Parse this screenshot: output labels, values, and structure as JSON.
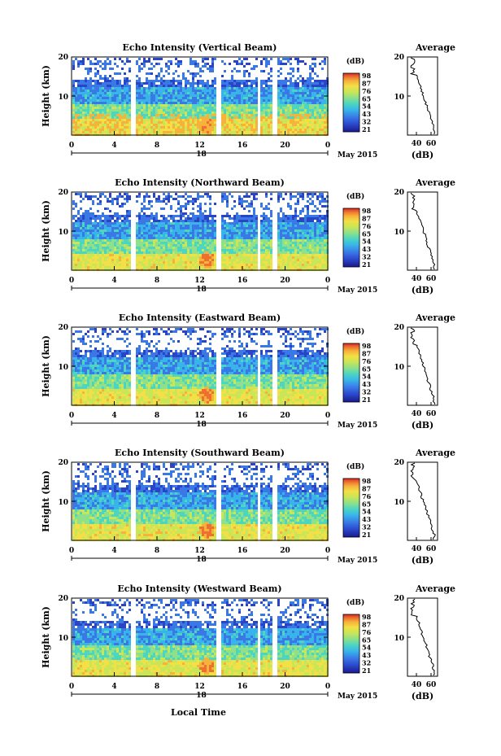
{
  "chart_data": [
    {
      "type": "heatmap",
      "title": "Echo Intensity (Vertical Beam)",
      "ylabel": "Height (km)",
      "xticks": [
        "0",
        "4",
        "8",
        "12",
        "16",
        "20",
        "0"
      ],
      "yticks": [
        "20",
        "10"
      ],
      "date_label": "18",
      "month_label": "May 2015",
      "colorbar": {
        "unit": "(dB)",
        "ticks": [
          "98",
          "87",
          "76",
          "65",
          "54",
          "43",
          "32",
          "21"
        ]
      },
      "profile": {
        "title": "Average",
        "xticks": [
          "40",
          "60"
        ],
        "xlabel": "(dB)",
        "yticks": [
          "20",
          "10"
        ]
      }
    },
    {
      "type": "heatmap",
      "title": "Echo Intensity (Northward Beam)",
      "ylabel": "Height (km)",
      "xticks": [
        "0",
        "4",
        "8",
        "12",
        "16",
        "20",
        "0"
      ],
      "yticks": [
        "20",
        "10"
      ],
      "date_label": "18",
      "month_label": "May 2015",
      "colorbar": {
        "unit": "(dB)",
        "ticks": [
          "98",
          "87",
          "76",
          "65",
          "54",
          "43",
          "32",
          "21"
        ]
      },
      "profile": {
        "title": "Average",
        "xticks": [
          "40",
          "60"
        ],
        "xlabel": "(dB)",
        "yticks": [
          "20",
          "10"
        ]
      }
    },
    {
      "type": "heatmap",
      "title": "Echo Intensity (Eastward Beam)",
      "ylabel": "Height (km)",
      "xticks": [
        "0",
        "4",
        "8",
        "12",
        "16",
        "20",
        "0"
      ],
      "yticks": [
        "20",
        "10"
      ],
      "date_label": "18",
      "month_label": "May 2015",
      "colorbar": {
        "unit": "(dB)",
        "ticks": [
          "98",
          "87",
          "76",
          "65",
          "54",
          "43",
          "32",
          "21"
        ]
      },
      "profile": {
        "title": "Average",
        "xticks": [
          "40",
          "60"
        ],
        "xlabel": "(dB)",
        "yticks": [
          "20",
          "10"
        ]
      }
    },
    {
      "type": "heatmap",
      "title": "Echo Intensity (Southward Beam)",
      "ylabel": "Height (km)",
      "xticks": [
        "0",
        "4",
        "8",
        "12",
        "16",
        "20",
        "0"
      ],
      "yticks": [
        "20",
        "10"
      ],
      "date_label": "18",
      "month_label": "May 2015",
      "colorbar": {
        "unit": "(dB)",
        "ticks": [
          "98",
          "87",
          "76",
          "65",
          "54",
          "43",
          "32",
          "21"
        ]
      },
      "profile": {
        "title": "Average",
        "xticks": [
          "40",
          "60"
        ],
        "xlabel": "(dB)",
        "yticks": [
          "20",
          "10"
        ]
      }
    },
    {
      "type": "heatmap",
      "title": "Echo Intensity (Westward Beam)",
      "ylabel": "Height (km)",
      "xticks": [
        "0",
        "4",
        "8",
        "12",
        "16",
        "20",
        "0"
      ],
      "yticks": [
        "20",
        "10"
      ],
      "date_label": "18",
      "month_label": "May 2015",
      "colorbar": {
        "unit": "(dB)",
        "ticks": [
          "98",
          "87",
          "76",
          "65",
          "54",
          "43",
          "32",
          "21"
        ]
      },
      "profile": {
        "title": "Average",
        "xticks": [
          "40",
          "60"
        ],
        "xlabel": "(dB)",
        "yticks": [
          "20",
          "10"
        ]
      }
    }
  ],
  "figure": {
    "xlabel": "Local Time"
  },
  "colormap": [
    "#1a1a8c",
    "#2a44c8",
    "#3a78e6",
    "#38b4ea",
    "#4cd6c0",
    "#8ee08a",
    "#c8e658",
    "#f2e046",
    "#f6b23a",
    "#ee7030",
    "#d62a26"
  ]
}
